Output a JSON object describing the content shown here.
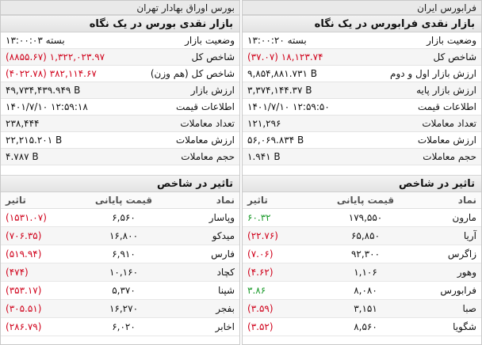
{
  "left_panel": {
    "topbar": "بورس اوراق بهادار تهران",
    "cash_market_title": "بازار نقدی بورس در یک نگاه",
    "stats": [
      {
        "label": "وضعیت بازار",
        "value": "بسته ۱۳:۰۰:۰۳",
        "color": ""
      },
      {
        "label": "شاخص کل",
        "value": "(۸۸۵۵.۶۷) ۱,۳۲۲,۰۲۳.۹۷",
        "color": "neg"
      },
      {
        "label": "شاخص کل (هم وزن)",
        "value": "(۴۰۲۲.۷۸) ۳۸۲,۱۱۴.۶۷",
        "color": "neg"
      },
      {
        "label": "ارزش بازار",
        "value": "۴۹,۷۳۴,۴۳۹.۹۴۹ B",
        "color": ""
      },
      {
        "label": "اطلاعات قیمت",
        "value": "۱۴۰۱/۷/۱۰ ۱۲:۵۹:۱۸",
        "color": ""
      },
      {
        "label": "تعداد معاملات",
        "value": "۲۳۸,۴۴۴",
        "color": ""
      },
      {
        "label": "ارزش معاملات",
        "value": "۲۲,۲۱۵.۲۰۱ B",
        "color": ""
      },
      {
        "label": "حجم معاملات",
        "value": "۴.۷۸۷ B",
        "color": ""
      }
    ],
    "impact_title": "تاثیر در شاخص",
    "impact_headers": {
      "symbol": "نماد",
      "price": "قیمت پایانی",
      "effect": "تاثیر"
    },
    "impact_rows": [
      {
        "symbol": "وپاسار",
        "price": "۶,۵۶۰",
        "effect": "(۱۵۳۱.۰۷)",
        "color": "neg"
      },
      {
        "symbol": "میدکو",
        "price": "۱۶,۸۰۰",
        "effect": "(۷۰۶.۳۵)",
        "color": "neg"
      },
      {
        "symbol": "فارس",
        "price": "۶,۹۱۰",
        "effect": "(۵۱۹.۹۴)",
        "color": "neg"
      },
      {
        "symbol": "کچاد",
        "price": "۱۰,۱۶۰",
        "effect": "(۴۷۴)",
        "color": "neg"
      },
      {
        "symbol": "شپنا",
        "price": "۵,۳۷۰",
        "effect": "(۳۵۳.۱۷)",
        "color": "neg"
      },
      {
        "symbol": "بفجر",
        "price": "۱۶,۲۷۰",
        "effect": "(۳۰۵.۵۱)",
        "color": "neg"
      },
      {
        "symbol": "اخابر",
        "price": "۶,۰۲۰",
        "effect": "(۲۸۶.۷۹)",
        "color": "neg"
      }
    ]
  },
  "right_panel": {
    "topbar": "فرابورس ایران",
    "cash_market_title": "بازار نقدی فرابورس در یک نگاه",
    "stats": [
      {
        "label": "وضعیت بازار",
        "value": "بسته ۱۳:۰۰:۲۰",
        "color": ""
      },
      {
        "label": "شاخص کل",
        "value": "(۳۷.۰۷) ۱۸,۱۲۳.۷۴",
        "color": "neg"
      },
      {
        "label": "ارزش بازار اول و دوم",
        "value": "۹,۸۵۴,۸۸۱.۷۳۱ B",
        "color": ""
      },
      {
        "label": "ارزش بازار پایه",
        "value": "۳,۳۷۴,۱۴۴.۳۷ B",
        "color": ""
      },
      {
        "label": "اطلاعات قیمت",
        "value": "۱۴۰۱/۷/۱۰ ۱۲:۵۹:۵۰",
        "color": ""
      },
      {
        "label": "تعداد معاملات",
        "value": "۱۲۱,۲۹۶",
        "color": ""
      },
      {
        "label": "ارزش معاملات",
        "value": "۵۶,۰۶۹.۸۳۴ B",
        "color": ""
      },
      {
        "label": "حجم معاملات",
        "value": "۱.۹۴۱ B",
        "color": ""
      }
    ],
    "impact_title": "تاثیر در شاخص",
    "impact_headers": {
      "symbol": "نماد",
      "price": "قیمت پایانی",
      "effect": "تاثیر"
    },
    "impact_rows": [
      {
        "symbol": "مارون",
        "price": "۱۷۹,۵۵۰",
        "effect": "۶۰.۳۲",
        "color": "pos"
      },
      {
        "symbol": "آریا",
        "price": "۶۵,۸۵۰",
        "effect": "(۲۲.۷۶)",
        "color": "neg"
      },
      {
        "symbol": "زاگرس",
        "price": "۹۲,۳۰۰",
        "effect": "(۷.۰۶)",
        "color": "neg"
      },
      {
        "symbol": "وهور",
        "price": "۱,۱۰۶",
        "effect": "(۴.۶۲)",
        "color": "neg"
      },
      {
        "symbol": "فرابورس",
        "price": "۸,۰۸۰",
        "effect": "۳.۸۶",
        "color": "pos"
      },
      {
        "symbol": "صبا",
        "price": "۳,۱۵۱",
        "effect": "(۳.۵۹)",
        "color": "neg"
      },
      {
        "symbol": "شگویا",
        "price": "۸,۵۶۰",
        "effect": "(۳.۵۲)",
        "color": "neg"
      }
    ]
  }
}
